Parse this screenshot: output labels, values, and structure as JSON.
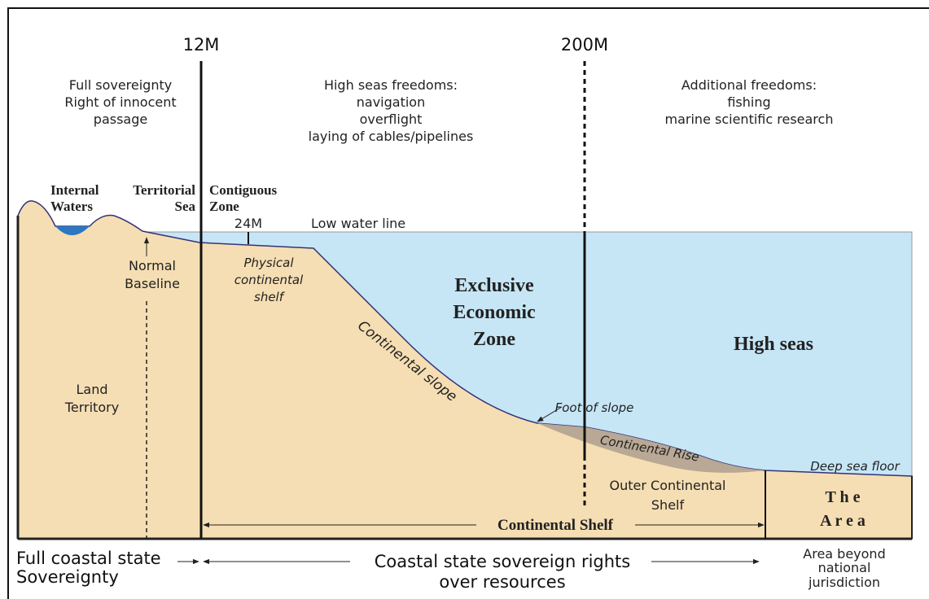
{
  "limit_12m": "12M",
  "limit_200m": "200M",
  "territorial_note": [
    "Full sovereignty",
    "Right of innocent",
    "passage"
  ],
  "high_seas_freedoms": [
    "High seas freedoms:",
    "navigation",
    "overflight",
    "laying of cables/pipelines"
  ],
  "additional_freedoms": [
    "Additional freedoms:",
    "fishing",
    "marine scientific research"
  ],
  "internal_waters": [
    "Internal",
    "Waters"
  ],
  "territorial_sea": [
    "Territorial",
    "Sea"
  ],
  "contiguous_zone": [
    "Contiguous",
    "Zone"
  ],
  "marker_24m": "24M",
  "low_water_line": "Low water line",
  "normal_baseline": [
    "Normal",
    "Baseline"
  ],
  "physical_shelf": [
    "Physical",
    "continental",
    "shelf"
  ],
  "eez": [
    "Exclusive",
    "Economic",
    "Zone"
  ],
  "high_seas": "High seas",
  "land_territory": [
    "Land",
    "Territory"
  ],
  "continental_slope": "Continental slope",
  "foot_of_slope": "Foot of slope",
  "continental_rise": "Continental Rise",
  "deep_sea_floor": "Deep sea floor",
  "outer_shelf": [
    "Outer Continental",
    "Shelf"
  ],
  "the_area": [
    "T h e",
    "A r e a"
  ],
  "continental_shelf": "Continental Shelf",
  "full_coastal": [
    "Full coastal state",
    "Sovereignty"
  ],
  "coastal_rights": [
    "Coastal state sovereign rights",
    "over resources"
  ],
  "beyond": [
    "Area beyond",
    "national",
    "jurisdiction"
  ]
}
